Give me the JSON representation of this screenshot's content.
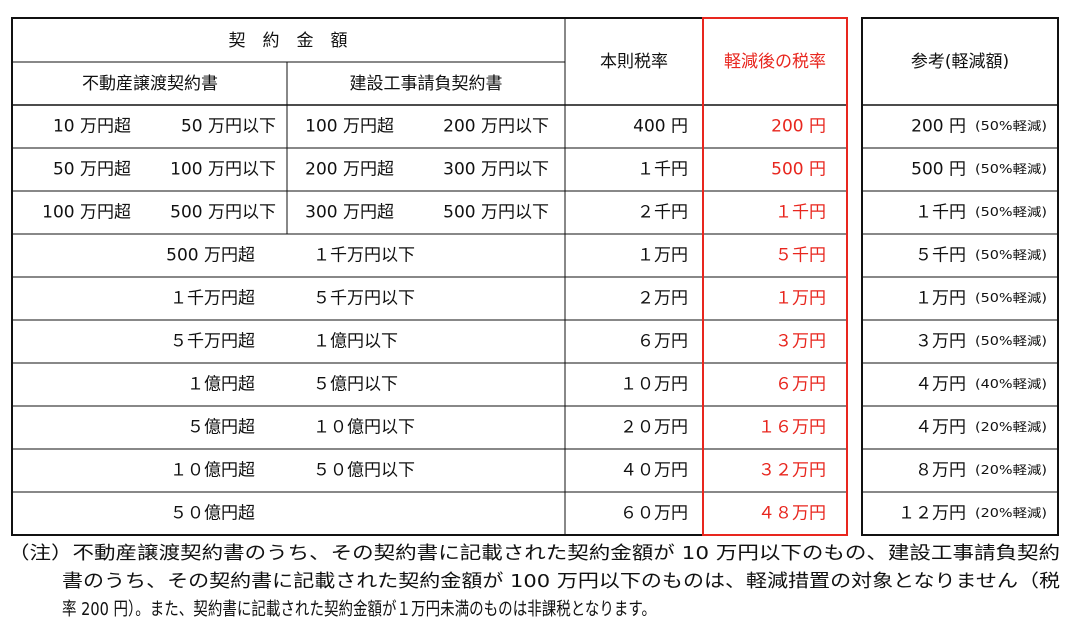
{
  "header": {
    "amount": "契　約　金　額",
    "real_estate": "不動産譲渡契約書",
    "construction": "建設工事請負契約書",
    "standard_rate": "本則税率",
    "reduced_rate": "軽減後の税率",
    "reference": "参考(軽減額)"
  },
  "table": {
    "rows": [
      {
        "real_estate": [
          "10 万円超",
          "50 万円以下"
        ],
        "construction": [
          "100 万円超",
          "200 万円以下"
        ],
        "standard": "400 円",
        "reduced": "200 円",
        "reference": "200 円",
        "reference_note": "(50%軽減)"
      },
      {
        "real_estate": [
          "50 万円超",
          "100 万円以下"
        ],
        "construction": [
          "200 万円超",
          "300 万円以下"
        ],
        "standard": "１千円",
        "reduced": "500 円",
        "reference": "500 円",
        "reference_note": "(50%軽減)"
      },
      {
        "real_estate": [
          "100 万円超",
          "500 万円以下"
        ],
        "construction": [
          "300 万円超",
          "500 万円以下"
        ],
        "standard": "２千円",
        "reduced": "１千円",
        "reference": "１千円",
        "reference_note": "(50%軽減)"
      },
      {
        "amount": [
          "500 万円超",
          "１千万円以下"
        ],
        "standard": "１万円",
        "reduced": "５千円",
        "reference": "５千円",
        "reference_note": "(50%軽減)"
      },
      {
        "amount": [
          "１千万円超",
          "５千万円以下"
        ],
        "standard": "２万円",
        "reduced": "１万円",
        "reference": "１万円",
        "reference_note": "(50%軽減)"
      },
      {
        "amount": [
          "５千万円超",
          "１億円以下"
        ],
        "standard": "６万円",
        "reduced": "３万円",
        "reference": "３万円",
        "reference_note": "(50%軽減)"
      },
      {
        "amount": [
          "１億円超",
          "５億円以下"
        ],
        "standard": "１０万円",
        "reduced": "６万円",
        "reference": "４万円",
        "reference_note": "(40%軽減)"
      },
      {
        "amount": [
          "５億円超",
          "１０億円以下"
        ],
        "standard": "２０万円",
        "reduced": "１６万円",
        "reference": "４万円",
        "reference_note": "(20%軽減)"
      },
      {
        "amount": [
          "１０億円超",
          "５０億円以下"
        ],
        "standard": "４０万円",
        "reduced": "３２万円",
        "reference": "８万円",
        "reference_note": "(20%軽減)"
      },
      {
        "amount": [
          "５０億円超"
        ],
        "standard": "６０万円",
        "reduced": "４８万円",
        "reference": "１２万円",
        "reference_note": "(20%軽減)"
      }
    ]
  },
  "note": {
    "lines": [
      "（注）不動産譲渡契約書のうち、その契約書に記載された契約金額が 10 万円以下のもの、建設工事請負契約",
      "書のうち、その契約書に記載された契約金額が 100 万円以下のものは、軽減措置の対象となりません（税",
      "率 200 円）。また、契約書に記載された契約金額が１万円未満のものは非課税となります。"
    ]
  }
}
